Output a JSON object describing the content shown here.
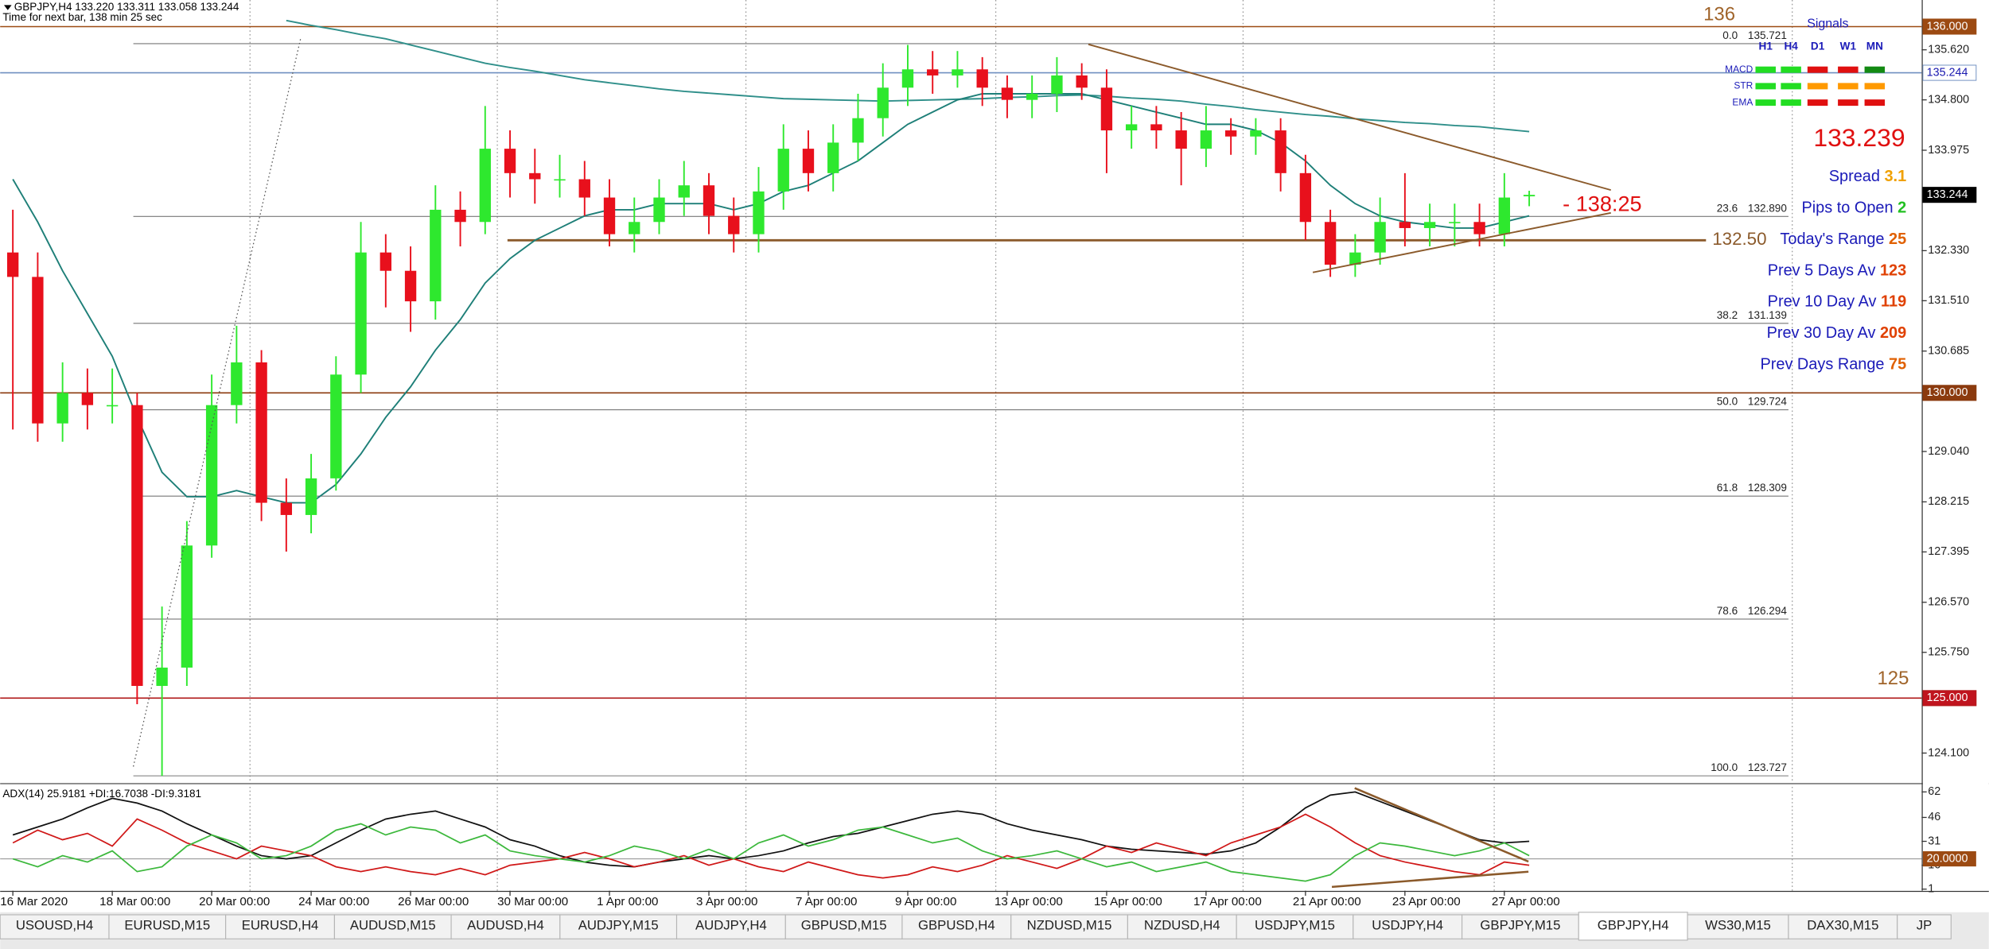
{
  "header": {
    "title": "GBPJPY,H4  133.220 133.311 133.058 133.244",
    "timer": "Time for next bar, 138 min 25 sec"
  },
  "chart_data": {
    "type": "candlestick",
    "categories": [
      "16 Mar 2020",
      null,
      null,
      null,
      "18 Mar 00:00",
      null,
      null,
      null,
      "20 Mar 00:00",
      null,
      null,
      null,
      "24 Mar 00:00",
      null,
      null,
      null,
      "26 Mar 00:00",
      null,
      null,
      null,
      "30 Mar 00:00",
      null,
      null,
      null,
      "1 Apr 00:00",
      null,
      null,
      null,
      "3 Apr 00:00",
      null,
      null,
      null,
      "7 Apr 00:00",
      null,
      null,
      null,
      "9 Apr 00:00",
      null,
      null,
      null,
      "13 Apr 00:00",
      null,
      null,
      null,
      "15 Apr 00:00",
      null,
      null,
      null,
      "17 Apr 00:00",
      null,
      null,
      null,
      "21 Apr 00:00",
      null,
      null,
      null,
      "23 Apr 00:00",
      null,
      null,
      null,
      "27 Apr 00:00",
      null
    ],
    "open": [
      132.3,
      131.9,
      129.5,
      130.0,
      129.8,
      129.8,
      125.2,
      125.5,
      127.5,
      129.8,
      130.5,
      128.2,
      128.0,
      128.6,
      130.3,
      132.3,
      132.0,
      131.5,
      133.0,
      132.8,
      134.0,
      133.6,
      133.5,
      133.5,
      133.2,
      132.6,
      132.8,
      133.2,
      133.4,
      132.9,
      132.6,
      133.3,
      134.0,
      133.6,
      134.1,
      134.5,
      135.0,
      135.3,
      135.2,
      135.3,
      135.0,
      134.8,
      134.9,
      135.2,
      135.0,
      134.3,
      134.4,
      134.3,
      134.0,
      134.3,
      134.2,
      134.3,
      133.6,
      132.8,
      132.1,
      132.3,
      132.8,
      132.7,
      132.8,
      132.8,
      132.6,
      133.22
    ],
    "high": [
      133.0,
      132.3,
      130.5,
      130.4,
      130.4,
      130.0,
      126.5,
      127.9,
      130.3,
      131.1,
      130.7,
      128.6,
      129.0,
      130.6,
      132.8,
      132.6,
      132.4,
      133.4,
      133.3,
      134.7,
      134.3,
      134.0,
      133.9,
      133.8,
      133.5,
      133.2,
      133.5,
      133.8,
      133.6,
      133.2,
      133.7,
      134.4,
      134.3,
      134.4,
      134.9,
      135.4,
      135.7,
      135.6,
      135.6,
      135.5,
      135.2,
      135.2,
      135.5,
      135.4,
      135.3,
      134.7,
      134.7,
      134.6,
      134.7,
      134.5,
      134.5,
      134.5,
      133.9,
      133.0,
      132.6,
      133.2,
      133.6,
      133.1,
      133.1,
      133.1,
      133.6,
      133.311
    ],
    "low": [
      129.4,
      129.2,
      129.2,
      129.4,
      129.5,
      124.9,
      123.727,
      125.2,
      127.3,
      129.5,
      127.9,
      127.4,
      127.7,
      128.4,
      130.0,
      131.4,
      131.0,
      131.2,
      132.4,
      132.6,
      133.2,
      133.1,
      133.2,
      132.9,
      132.4,
      132.3,
      132.6,
      132.9,
      132.6,
      132.3,
      132.3,
      133.0,
      133.3,
      133.3,
      133.8,
      134.2,
      134.7,
      134.9,
      135.0,
      134.7,
      134.5,
      134.5,
      134.6,
      134.8,
      133.6,
      134.0,
      134.0,
      133.4,
      133.7,
      133.9,
      133.9,
      133.3,
      132.5,
      131.9,
      131.9,
      132.1,
      132.4,
      132.4,
      132.4,
      132.4,
      132.4,
      133.058
    ],
    "close": [
      131.9,
      129.5,
      130.0,
      129.8,
      129.8,
      125.2,
      125.5,
      127.5,
      129.8,
      130.5,
      128.2,
      128.0,
      128.6,
      130.3,
      132.3,
      132.0,
      131.5,
      133.0,
      132.8,
      134.0,
      133.6,
      133.5,
      133.5,
      133.2,
      132.6,
      132.8,
      133.2,
      133.4,
      132.9,
      132.6,
      133.3,
      134.0,
      133.6,
      134.1,
      134.5,
      135.0,
      135.3,
      135.2,
      135.3,
      135.0,
      134.8,
      134.9,
      135.2,
      135.0,
      134.3,
      134.4,
      134.3,
      134.0,
      134.3,
      134.2,
      134.3,
      133.6,
      132.8,
      132.1,
      132.3,
      132.8,
      132.7,
      132.8,
      132.8,
      132.6,
      133.2,
      133.244
    ],
    "up_color": "#2ee82e",
    "down_color": "#e8101c",
    "ylim": [
      123.63,
      136.436
    ],
    "yticks": [
      {
        "value": 135.62,
        "label": "135.620"
      },
      {
        "value": 134.8,
        "label": "134.800"
      },
      133.975,
      {
        "value": 132.33,
        "label": "132.330"
      },
      {
        "value": 131.51,
        "label": "131.510"
      },
      130.685,
      {
        "value": 129.04,
        "label": "129.040"
      },
      128.215,
      127.395,
      {
        "value": 126.57,
        "label": "126.570"
      },
      {
        "value": 125.75,
        "label": "125.750"
      },
      {
        "value": 124.1,
        "label": "124.100"
      }
    ],
    "overlays": [
      {
        "color": "#2f8f8a",
        "values": [
          null,
          null,
          null,
          null,
          null,
          null,
          null,
          null,
          null,
          null,
          null,
          136.1,
          136.02,
          135.95,
          135.87,
          135.8,
          135.7,
          135.6,
          135.5,
          135.4,
          135.33,
          135.27,
          135.2,
          135.13,
          135.08,
          135.03,
          134.98,
          134.94,
          134.91,
          134.88,
          134.85,
          134.82,
          134.81,
          134.8,
          134.79,
          134.78,
          134.79,
          134.8,
          134.81,
          134.82,
          134.84,
          134.85,
          134.87,
          134.88,
          134.86,
          134.83,
          134.81,
          134.78,
          134.73,
          134.69,
          134.64,
          134.6,
          134.56,
          134.53,
          134.49,
          134.46,
          134.43,
          134.41,
          134.38,
          134.36,
          134.32,
          134.28
        ]
      },
      {
        "color": "#1e7f78",
        "values": [
          133.5,
          132.8,
          132.0,
          131.3,
          130.6,
          129.6,
          128.7,
          128.3,
          128.3,
          128.4,
          128.3,
          128.2,
          128.2,
          128.5,
          129.0,
          129.6,
          130.1,
          130.7,
          131.2,
          131.8,
          132.2,
          132.5,
          132.7,
          132.9,
          133.0,
          133.0,
          133.1,
          133.1,
          133.1,
          133.0,
          133.1,
          133.3,
          133.4,
          133.6,
          133.8,
          134.1,
          134.4,
          134.6,
          134.8,
          134.9,
          134.9,
          134.9,
          134.9,
          134.9,
          134.8,
          134.7,
          134.6,
          134.5,
          134.4,
          134.4,
          134.3,
          134.1,
          133.8,
          133.4,
          133.1,
          132.9,
          132.8,
          132.75,
          132.7,
          132.7,
          132.8,
          132.9
        ]
      }
    ],
    "price_labels": [
      {
        "value": 136,
        "label": "136.000",
        "color": "#9c4a12",
        "text_color": "#ffffff",
        "line_color": "#9c4a12"
      },
      {
        "value": 135.244,
        "label": "135.244",
        "color": "#ffffff",
        "text_color": "#1a1ab0",
        "line_color": "#6f8fc0"
      },
      {
        "value": 133.244,
        "label": "133.244",
        "color": "#000000",
        "text_color": "#ffffff"
      },
      {
        "value": 130,
        "label": "130.000",
        "color": "#8b3a0e",
        "text_color": "#ffffff",
        "line_color": "#8b3a0e"
      },
      {
        "value": 125,
        "label": "125.000",
        "color": "#c0141e",
        "text_color": "#ffffff",
        "line_color": "#b01818"
      }
    ],
    "fib_levels": [
      {
        "level": {
          "value": 0,
          "label": "0.0"
        },
        "price": 135.721
      },
      {
        "level": 23.6,
        "price": {
          "value": 132.89,
          "label": "132.890"
        }
      },
      {
        "level": 38.2,
        "price": 131.139
      },
      {
        "level": {
          "value": 50,
          "label": "50.0"
        },
        "price": 129.724
      },
      {
        "level": 61.8,
        "price": 128.309
      },
      {
        "level": 78.6,
        "price": 126.294
      },
      {
        "level": {
          "value": 100,
          "label": "100.0"
        },
        "price": 123.727
      }
    ],
    "level_texts": [
      136,
      125
    ],
    "support": {
      "value": 132.5,
      "label": "132.50"
    },
    "timer_label": "- 138:25"
  },
  "indicator": {
    "type": "line",
    "title": "ADX(14) 25.9181 +DI:16.7038 -DI:9.3181",
    "ylim": [
      0,
      66
    ],
    "yticks": [
      62,
      46,
      31,
      16,
      1
    ],
    "level": {
      "value": 20,
      "label": "20.0000",
      "color": "#9c4a12"
    },
    "series": [
      {
        "color": "#111111",
        "values": [
          35,
          40,
          45,
          52,
          58,
          55,
          50,
          42,
          35,
          28,
          22,
          20,
          22,
          30,
          38,
          45,
          48,
          50,
          45,
          40,
          32,
          28,
          22,
          18,
          16,
          15,
          18,
          20,
          22,
          20,
          22,
          25,
          30,
          34,
          36,
          40,
          44,
          48,
          50,
          48,
          42,
          38,
          35,
          32,
          28,
          26,
          25,
          24,
          23,
          25,
          30,
          40,
          52,
          60,
          62,
          56,
          50,
          44,
          38,
          32,
          30,
          31
        ]
      },
      {
        "color": "#d01818",
        "values": [
          30,
          38,
          32,
          36,
          28,
          45,
          38,
          30,
          25,
          20,
          28,
          25,
          22,
          15,
          12,
          15,
          12,
          10,
          14,
          10,
          16,
          18,
          20,
          24,
          20,
          15,
          18,
          22,
          16,
          20,
          15,
          12,
          18,
          14,
          10,
          8,
          10,
          15,
          12,
          16,
          22,
          18,
          14,
          20,
          28,
          24,
          30,
          26,
          22,
          30,
          35,
          40,
          48,
          40,
          30,
          22,
          18,
          15,
          12,
          10,
          18,
          16
        ]
      },
      {
        "color": "#3cb83c",
        "values": [
          20,
          15,
          22,
          18,
          25,
          12,
          15,
          28,
          35,
          30,
          20,
          22,
          28,
          38,
          42,
          35,
          40,
          38,
          30,
          35,
          25,
          22,
          20,
          18,
          22,
          28,
          25,
          20,
          26,
          20,
          30,
          35,
          28,
          32,
          38,
          40,
          35,
          30,
          33,
          25,
          20,
          22,
          25,
          20,
          15,
          18,
          12,
          15,
          18,
          12,
          10,
          8,
          6,
          10,
          22,
          30,
          28,
          25,
          22,
          25,
          30,
          22
        ]
      }
    ]
  },
  "signals": {
    "title": "Signals",
    "columns": [
      "H1",
      "H4",
      "D1",
      "W1",
      "MN"
    ],
    "rows": [
      {
        "name": "MACD",
        "colors": [
          "#22dd22",
          "#22dd22",
          "#e01010",
          "#e01010",
          "#138a13"
        ]
      },
      {
        "name": "STR",
        "colors": [
          "#22dd22",
          "#22dd22",
          "#ff9900",
          "#ff9900",
          "#ff9900"
        ]
      },
      {
        "name": "EMA",
        "colors": [
          "#22dd22",
          "#22dd22",
          "#e01010",
          "#e01010",
          "#e01010"
        ]
      }
    ]
  },
  "info": {
    "price": 133.239,
    "price_color": "#e01010",
    "label_color": "#1a1ab8",
    "rows": [
      {
        "label": "Spread",
        "value": 3.1,
        "color": "#f0a000"
      },
      {
        "label": "Pips to Open",
        "value": 2,
        "color": "#22c022"
      },
      {
        "label": "Today's Range",
        "value": 25,
        "color": "#e06000"
      },
      {
        "label": "Prev 5 Days Av",
        "value": 123,
        "color": "#e04000"
      },
      {
        "label": "Prev 10 Day Av",
        "value": 119,
        "color": "#e04000"
      },
      {
        "label": "Prev 30 Day Av",
        "value": 209,
        "color": "#e04000"
      },
      {
        "label": "Prev Days Range",
        "value": 75,
        "color": "#e06000"
      }
    ]
  },
  "tabs": [
    "USOUSD,H4",
    "EURUSD,M15",
    "EURUSD,H4",
    "AUDUSD,M15",
    "AUDUSD,H4",
    "AUDJPY,M15",
    "AUDJPY,H4",
    "GBPUSD,M15",
    "GBPUSD,H4",
    "NZDUSD,M15",
    "NZDUSD,H4",
    "USDJPY,M15",
    "USDJPY,H4",
    "GBPJPY,M15",
    "GBPJPY,H4",
    "WS30,M15",
    "DAX30,M15",
    "JP"
  ],
  "active_tab": 14
}
